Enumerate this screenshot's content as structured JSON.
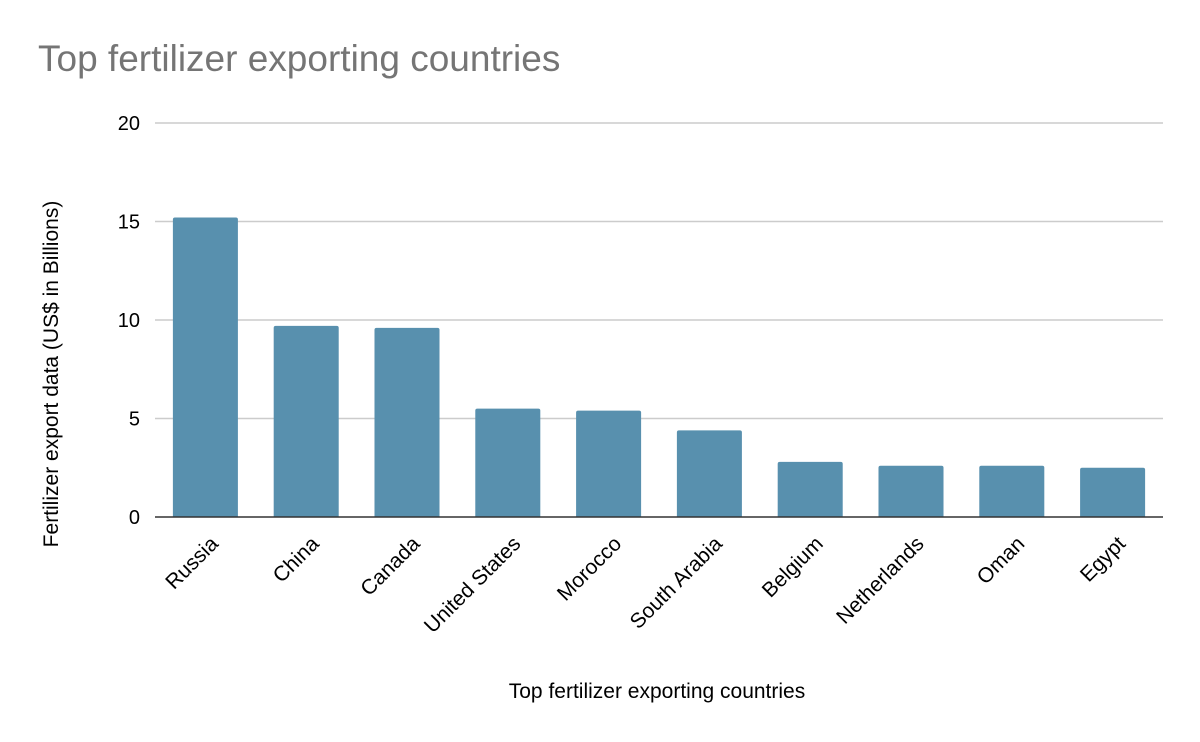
{
  "chart_data": {
    "type": "bar",
    "title": "Top fertilizer exporting countries",
    "xlabel": "Top fertilizer exporting countries",
    "ylabel": "Fertilizer export data (US$ in Billions)",
    "categories": [
      "Russia",
      "China",
      "Canada",
      "United States",
      "Morocco",
      "South Arabia",
      "Belgium",
      "Netherlands",
      "Oman",
      "Egypt"
    ],
    "values": [
      15.2,
      9.7,
      9.6,
      5.5,
      5.4,
      4.4,
      2.8,
      2.6,
      2.6,
      2.5
    ],
    "ylim": [
      0,
      20
    ],
    "yticks": [
      "0",
      "5",
      "10",
      "15",
      "20"
    ],
    "grid": true,
    "legend": "none",
    "colors": {
      "bar": "#5890ae",
      "grid": "#cccccc",
      "axis": "#333333",
      "title": "#757575"
    }
  }
}
